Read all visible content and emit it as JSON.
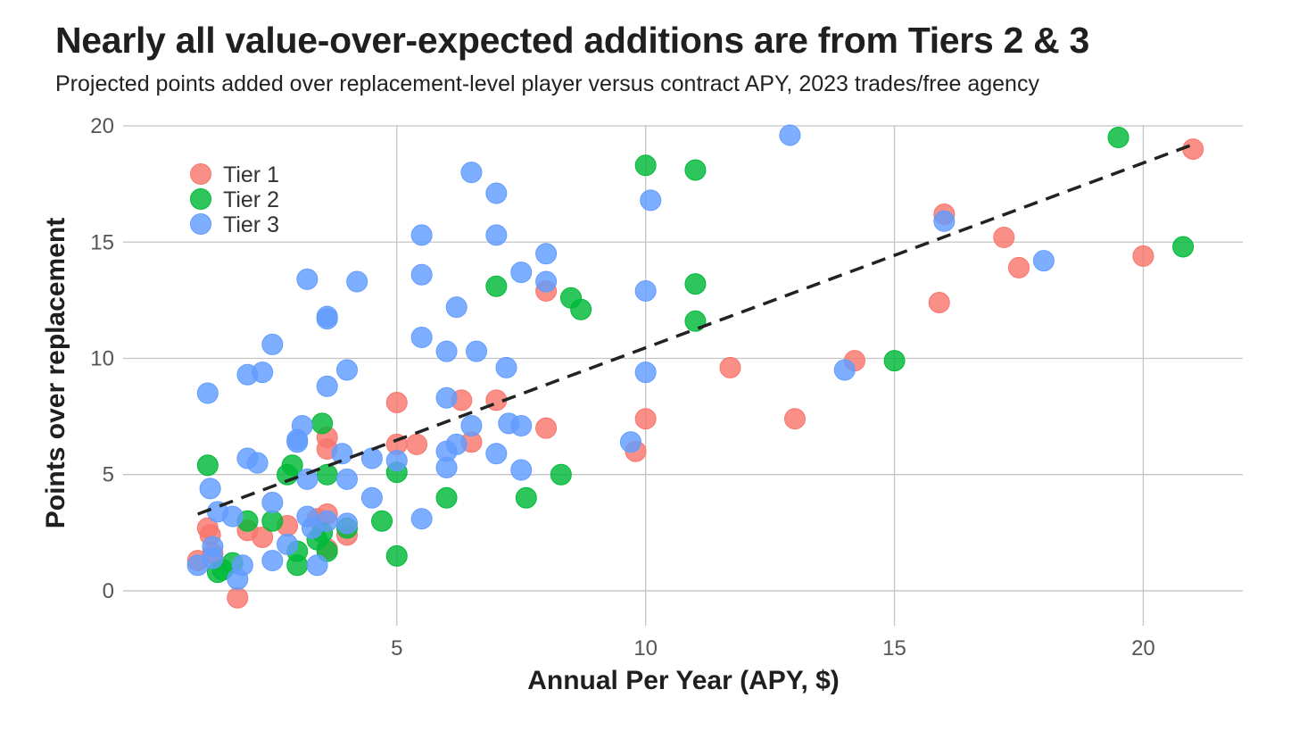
{
  "chart_data": {
    "type": "scatter",
    "title": "Nearly all value-over-expected additions are from Tiers 2 & 3",
    "subtitle": "Projected points added over replacement-level player versus contract APY, 2023 trades/free agency",
    "xlabel": "Annual Per Year (APY, $)",
    "ylabel": "Points over replacement",
    "xlim": [
      -0.5,
      22
    ],
    "ylim": [
      -1.5,
      20.5
    ],
    "xticks": [
      5,
      10,
      15,
      20
    ],
    "yticks": [
      0,
      5,
      10,
      15,
      20
    ],
    "grid": true,
    "legend_position": "top-left",
    "trendline": {
      "style": "dashed",
      "color": "#222222",
      "x": [
        1,
        21
      ],
      "y": [
        3.3,
        19.2
      ]
    },
    "series": [
      {
        "name": "Tier 1",
        "color": "#f8766d",
        "points": [
          [
            1.0,
            1.3
          ],
          [
            1.2,
            2.7
          ],
          [
            1.25,
            2.4
          ],
          [
            1.3,
            1.6
          ],
          [
            1.8,
            -0.3
          ],
          [
            2.0,
            2.6
          ],
          [
            2.3,
            2.3
          ],
          [
            2.8,
            2.8
          ],
          [
            3.4,
            3.1
          ],
          [
            3.6,
            3.3
          ],
          [
            3.6,
            6.6
          ],
          [
            3.6,
            6.1
          ],
          [
            3.6,
            1.8
          ],
          [
            4.0,
            2.4
          ],
          [
            5.0,
            8.1
          ],
          [
            5.0,
            6.3
          ],
          [
            5.4,
            6.3
          ],
          [
            6.3,
            8.2
          ],
          [
            6.5,
            6.4
          ],
          [
            7.0,
            8.2
          ],
          [
            8.0,
            12.9
          ],
          [
            8.0,
            7.0
          ],
          [
            9.8,
            6.0
          ],
          [
            10.0,
            7.4
          ],
          [
            11.7,
            9.6
          ],
          [
            13.0,
            7.4
          ],
          [
            14.2,
            9.9
          ],
          [
            15.9,
            12.4
          ],
          [
            16.0,
            16.2
          ],
          [
            17.2,
            15.2
          ],
          [
            17.5,
            13.9
          ],
          [
            20.0,
            14.4
          ],
          [
            21.0,
            19.0
          ]
        ]
      },
      {
        "name": "Tier 2",
        "color": "#00ba38",
        "points": [
          [
            1.2,
            5.4
          ],
          [
            1.4,
            0.8
          ],
          [
            1.5,
            0.9
          ],
          [
            1.7,
            1.2
          ],
          [
            2.0,
            3.0
          ],
          [
            2.5,
            3.0
          ],
          [
            2.8,
            5.0
          ],
          [
            2.9,
            5.4
          ],
          [
            3.0,
            1.1
          ],
          [
            3.0,
            1.7
          ],
          [
            3.4,
            2.2
          ],
          [
            3.5,
            7.2
          ],
          [
            3.5,
            2.5
          ],
          [
            3.6,
            1.7
          ],
          [
            3.6,
            5.0
          ],
          [
            4.0,
            2.7
          ],
          [
            4.7,
            3.0
          ],
          [
            5.0,
            5.1
          ],
          [
            5.0,
            1.5
          ],
          [
            6.0,
            4.0
          ],
          [
            7.0,
            13.1
          ],
          [
            7.6,
            4.0
          ],
          [
            8.3,
            5.0
          ],
          [
            8.5,
            12.6
          ],
          [
            8.7,
            12.1
          ],
          [
            10.0,
            18.3
          ],
          [
            11.0,
            18.1
          ],
          [
            11.0,
            13.2
          ],
          [
            11.0,
            11.6
          ],
          [
            15.0,
            9.9
          ],
          [
            19.5,
            19.5
          ],
          [
            20.8,
            14.8
          ]
        ]
      },
      {
        "name": "Tier 3",
        "color": "#619cff",
        "points": [
          [
            1.0,
            1.1
          ],
          [
            1.2,
            8.5
          ],
          [
            1.25,
            4.4
          ],
          [
            1.3,
            1.9
          ],
          [
            1.3,
            1.4
          ],
          [
            1.4,
            3.4
          ],
          [
            1.7,
            3.2
          ],
          [
            1.8,
            0.5
          ],
          [
            1.9,
            1.1
          ],
          [
            2.0,
            9.3
          ],
          [
            2.0,
            5.7
          ],
          [
            2.2,
            5.5
          ],
          [
            2.3,
            9.4
          ],
          [
            2.5,
            10.6
          ],
          [
            2.5,
            3.8
          ],
          [
            2.5,
            1.3
          ],
          [
            2.8,
            2.0
          ],
          [
            3.0,
            6.5
          ],
          [
            3.0,
            6.4
          ],
          [
            3.1,
            7.1
          ],
          [
            3.2,
            4.8
          ],
          [
            3.2,
            13.4
          ],
          [
            3.2,
            3.2
          ],
          [
            3.3,
            2.7
          ],
          [
            3.4,
            1.1
          ],
          [
            3.6,
            11.7
          ],
          [
            3.6,
            11.8
          ],
          [
            3.6,
            8.8
          ],
          [
            3.6,
            3.0
          ],
          [
            3.9,
            5.9
          ],
          [
            4.0,
            9.5
          ],
          [
            4.0,
            4.8
          ],
          [
            4.0,
            2.9
          ],
          [
            4.2,
            13.3
          ],
          [
            4.5,
            5.7
          ],
          [
            4.5,
            4.0
          ],
          [
            5.0,
            5.6
          ],
          [
            5.5,
            15.3
          ],
          [
            5.5,
            13.6
          ],
          [
            5.5,
            10.9
          ],
          [
            5.5,
            3.1
          ],
          [
            6.0,
            10.3
          ],
          [
            6.0,
            8.3
          ],
          [
            6.0,
            6.0
          ],
          [
            6.0,
            5.3
          ],
          [
            6.2,
            12.2
          ],
          [
            6.2,
            6.3
          ],
          [
            6.5,
            18.0
          ],
          [
            6.5,
            7.1
          ],
          [
            6.6,
            10.3
          ],
          [
            7.0,
            17.1
          ],
          [
            7.0,
            15.3
          ],
          [
            7.0,
            5.9
          ],
          [
            7.2,
            9.6
          ],
          [
            7.25,
            7.2
          ],
          [
            7.5,
            13.7
          ],
          [
            7.5,
            7.1
          ],
          [
            7.5,
            5.2
          ],
          [
            8.0,
            14.5
          ],
          [
            8.0,
            13.3
          ],
          [
            9.7,
            6.4
          ],
          [
            10.0,
            12.9
          ],
          [
            10.0,
            9.4
          ],
          [
            10.1,
            16.8
          ],
          [
            12.9,
            19.6
          ],
          [
            14.0,
            9.5
          ],
          [
            16.0,
            15.9
          ],
          [
            18.0,
            14.2
          ]
        ]
      }
    ]
  }
}
